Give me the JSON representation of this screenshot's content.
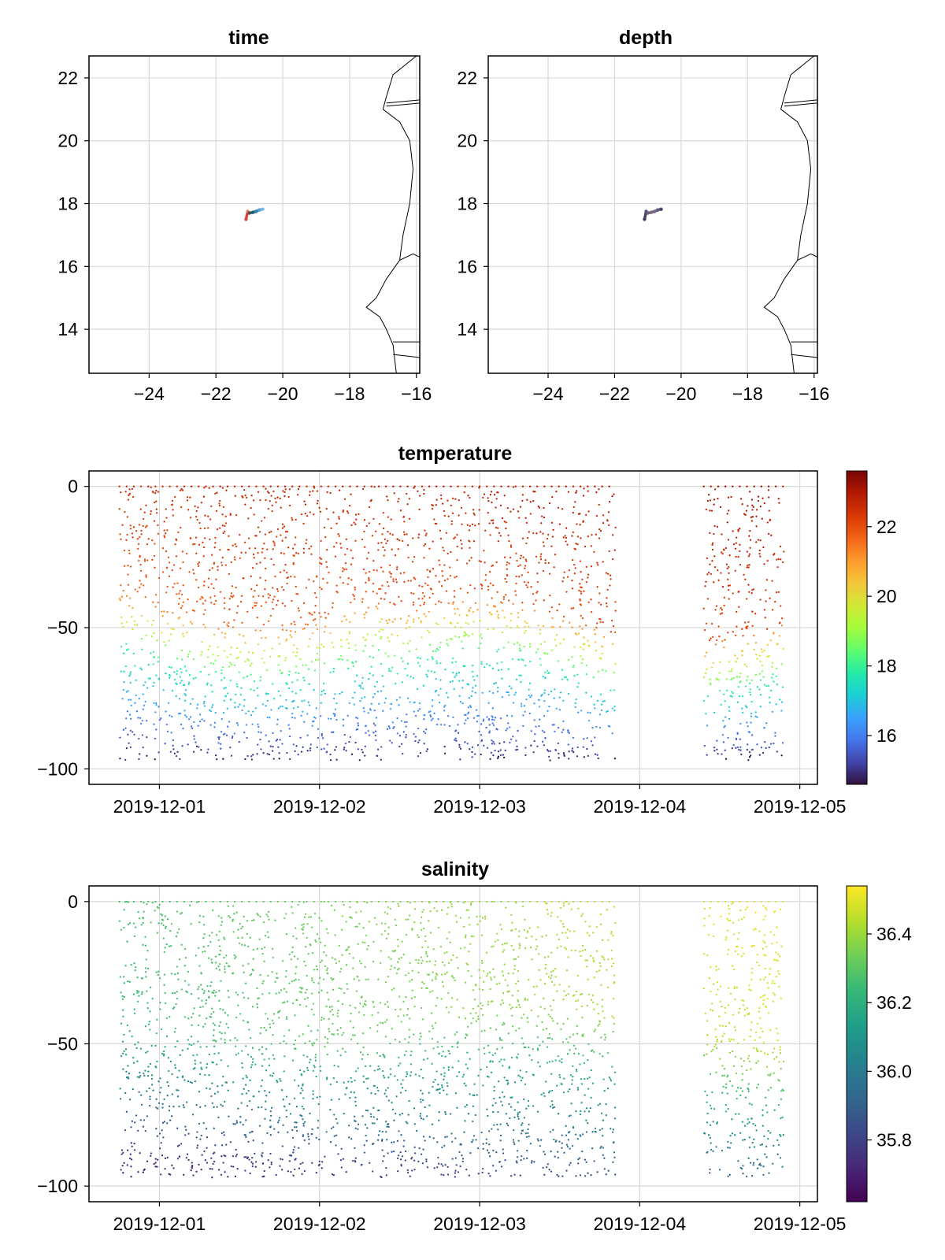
{
  "chart_data": [
    {
      "id": "time",
      "type": "scatter",
      "title": "time",
      "xlabel": "",
      "ylabel": "",
      "xlim": [
        -25.8,
        -15.9
      ],
      "ylim": [
        12.6,
        22.7
      ],
      "xticks": [
        -24,
        -22,
        -20,
        -18,
        -16
      ],
      "xtick_labels": [
        "−24",
        "−22",
        "−20",
        "−18",
        "−16"
      ],
      "yticks": [
        14,
        16,
        18,
        20,
        22
      ],
      "ytick_labels": [
        "14",
        "16",
        "18",
        "20",
        "22"
      ],
      "grid": true,
      "coastline": [
        [
          [
            -16.0,
            22.7
          ],
          [
            -16.7,
            22.1
          ],
          [
            -16.9,
            21.4
          ],
          [
            -17.0,
            21.0
          ],
          [
            -16.5,
            20.6
          ],
          [
            -16.2,
            20.0
          ],
          [
            -16.1,
            19.1
          ],
          [
            -16.2,
            18.0
          ],
          [
            -16.4,
            17.0
          ],
          [
            -16.5,
            16.2
          ],
          [
            -16.9,
            15.6
          ],
          [
            -17.2,
            15.0
          ],
          [
            -17.5,
            14.7
          ],
          [
            -17.1,
            14.4
          ],
          [
            -16.9,
            14.0
          ],
          [
            -16.7,
            13.5
          ],
          [
            -16.6,
            12.6
          ]
        ],
        [
          [
            -16.9,
            21.2
          ],
          [
            -15.9,
            21.3
          ]
        ],
        [
          [
            -16.9,
            21.1
          ],
          [
            -15.9,
            21.2
          ]
        ],
        [
          [
            -16.5,
            16.2
          ],
          [
            -16.1,
            16.4
          ],
          [
            -15.9,
            16.3
          ]
        ],
        [
          [
            -16.7,
            13.6
          ],
          [
            -15.9,
            13.6
          ]
        ],
        [
          [
            -16.7,
            13.2
          ],
          [
            -15.9,
            13.1
          ]
        ]
      ],
      "track_lon": [
        -21.1,
        -21.05,
        -21.0,
        -20.9,
        -20.8,
        -20.7,
        -20.6
      ],
      "track_lat": [
        17.5,
        17.75,
        17.7,
        17.72,
        17.75,
        17.8,
        17.82
      ],
      "track_colors": [
        "#d04840",
        "#e08068",
        "#505050",
        "#206070",
        "#3080b0",
        "#60a0d8",
        "#80b8e8"
      ]
    },
    {
      "id": "depth",
      "type": "scatter",
      "title": "depth",
      "xlabel": "",
      "ylabel": "",
      "xlim": [
        -25.8,
        -15.9
      ],
      "ylim": [
        12.6,
        22.7
      ],
      "xticks": [
        -24,
        -22,
        -20,
        -18,
        -16
      ],
      "xtick_labels": [
        "−24",
        "−22",
        "−20",
        "−18",
        "−16"
      ],
      "yticks": [
        14,
        16,
        18,
        20,
        22
      ],
      "ytick_labels": [
        "14",
        "16",
        "18",
        "20",
        "22"
      ],
      "grid": true,
      "coastline": [
        [
          [
            -16.0,
            22.7
          ],
          [
            -16.7,
            22.1
          ],
          [
            -16.9,
            21.4
          ],
          [
            -17.0,
            21.0
          ],
          [
            -16.5,
            20.6
          ],
          [
            -16.2,
            20.0
          ],
          [
            -16.1,
            19.1
          ],
          [
            -16.2,
            18.0
          ],
          [
            -16.4,
            17.0
          ],
          [
            -16.5,
            16.2
          ],
          [
            -16.9,
            15.6
          ],
          [
            -17.2,
            15.0
          ],
          [
            -17.5,
            14.7
          ],
          [
            -17.1,
            14.4
          ],
          [
            -16.9,
            14.0
          ],
          [
            -16.7,
            13.5
          ],
          [
            -16.6,
            12.6
          ]
        ],
        [
          [
            -16.9,
            21.2
          ],
          [
            -15.9,
            21.3
          ]
        ],
        [
          [
            -16.9,
            21.1
          ],
          [
            -15.9,
            21.2
          ]
        ],
        [
          [
            -16.5,
            16.2
          ],
          [
            -16.1,
            16.4
          ],
          [
            -15.9,
            16.3
          ]
        ],
        [
          [
            -16.7,
            13.6
          ],
          [
            -15.9,
            13.6
          ]
        ],
        [
          [
            -16.7,
            13.2
          ],
          [
            -15.9,
            13.1
          ]
        ]
      ],
      "track_lon": [
        -21.1,
        -21.05,
        -21.0,
        -20.9,
        -20.8,
        -20.7,
        -20.6
      ],
      "track_lat": [
        17.5,
        17.75,
        17.7,
        17.72,
        17.75,
        17.8,
        17.82
      ],
      "track_colors": [
        "#404060",
        "#505070",
        "#6a6080",
        "#806878",
        "#706a88",
        "#5a5c7c",
        "#4a4a6a"
      ]
    },
    {
      "id": "temperature",
      "type": "scatter",
      "title": "temperature",
      "xlabel": "",
      "ylabel": "",
      "xlim": [
        -0.44,
        4.11
      ],
      "ylim": [
        -105.5,
        5.5
      ],
      "xticks": [
        0,
        1,
        2,
        3,
        4
      ],
      "xtick_labels": [
        "2019-12-01",
        "2019-12-02",
        "2019-12-03",
        "2019-12-04",
        "2019-12-05"
      ],
      "yticks": [
        0,
        -50,
        -100
      ],
      "ytick_labels": [
        "0",
        "−50",
        "−100"
      ],
      "grid": true,
      "segments": [
        [
          -0.25,
          2.85
        ],
        [
          3.4,
          3.9
        ]
      ],
      "depth_range": [
        0,
        -97
      ],
      "colormap": "turbo",
      "colorbar": {
        "range": [
          14.6,
          23.6
        ],
        "ticks": [
          16,
          18,
          20,
          22
        ],
        "tick_labels": [
          "16",
          "18",
          "20",
          "22"
        ],
        "colors": [
          "#30123b",
          "#4145ab",
          "#4675ed",
          "#39a2fc",
          "#1bcfd4",
          "#24eca6",
          "#61fc6c",
          "#a4fc3b",
          "#d1e834",
          "#f3c63a",
          "#fe9b2d",
          "#f36315",
          "#d93806",
          "#b11901",
          "#7a0403"
        ]
      },
      "thermocline_start": -42,
      "thermocline_end": -60,
      "values_summary": {
        "surface": 23.0,
        "mixed_layer_edge": 20.0,
        "mid": 17.5,
        "bottom": 15.0
      }
    },
    {
      "id": "salinity",
      "type": "scatter",
      "title": "salinity",
      "xlabel": "",
      "ylabel": "",
      "xlim": [
        -0.44,
        4.11
      ],
      "ylim": [
        -105.5,
        5.5
      ],
      "xticks": [
        0,
        1,
        2,
        3,
        4
      ],
      "xtick_labels": [
        "2019-12-01",
        "2019-12-02",
        "2019-12-03",
        "2019-12-04",
        "2019-12-05"
      ],
      "yticks": [
        0,
        -50,
        -100
      ],
      "ytick_labels": [
        "0",
        "−50",
        "−100"
      ],
      "grid": true,
      "segments": [
        [
          -0.25,
          2.85
        ],
        [
          3.4,
          3.9
        ]
      ],
      "depth_range": [
        0,
        -97
      ],
      "colormap": "viridis",
      "colorbar": {
        "range": [
          35.62,
          36.54
        ],
        "ticks": [
          35.8,
          36.0,
          36.2,
          36.4
        ],
        "tick_labels": [
          "35.8",
          "36.0",
          "36.2",
          "36.4"
        ],
        "colors": [
          "#440154",
          "#482878",
          "#3e4989",
          "#31688e",
          "#26828e",
          "#1f9e89",
          "#35b779",
          "#6ece58",
          "#b5de2b",
          "#fde725"
        ]
      },
      "values_summary": {
        "surface_early": 36.3,
        "surface_late": 36.5,
        "bottom": 35.7
      }
    }
  ]
}
